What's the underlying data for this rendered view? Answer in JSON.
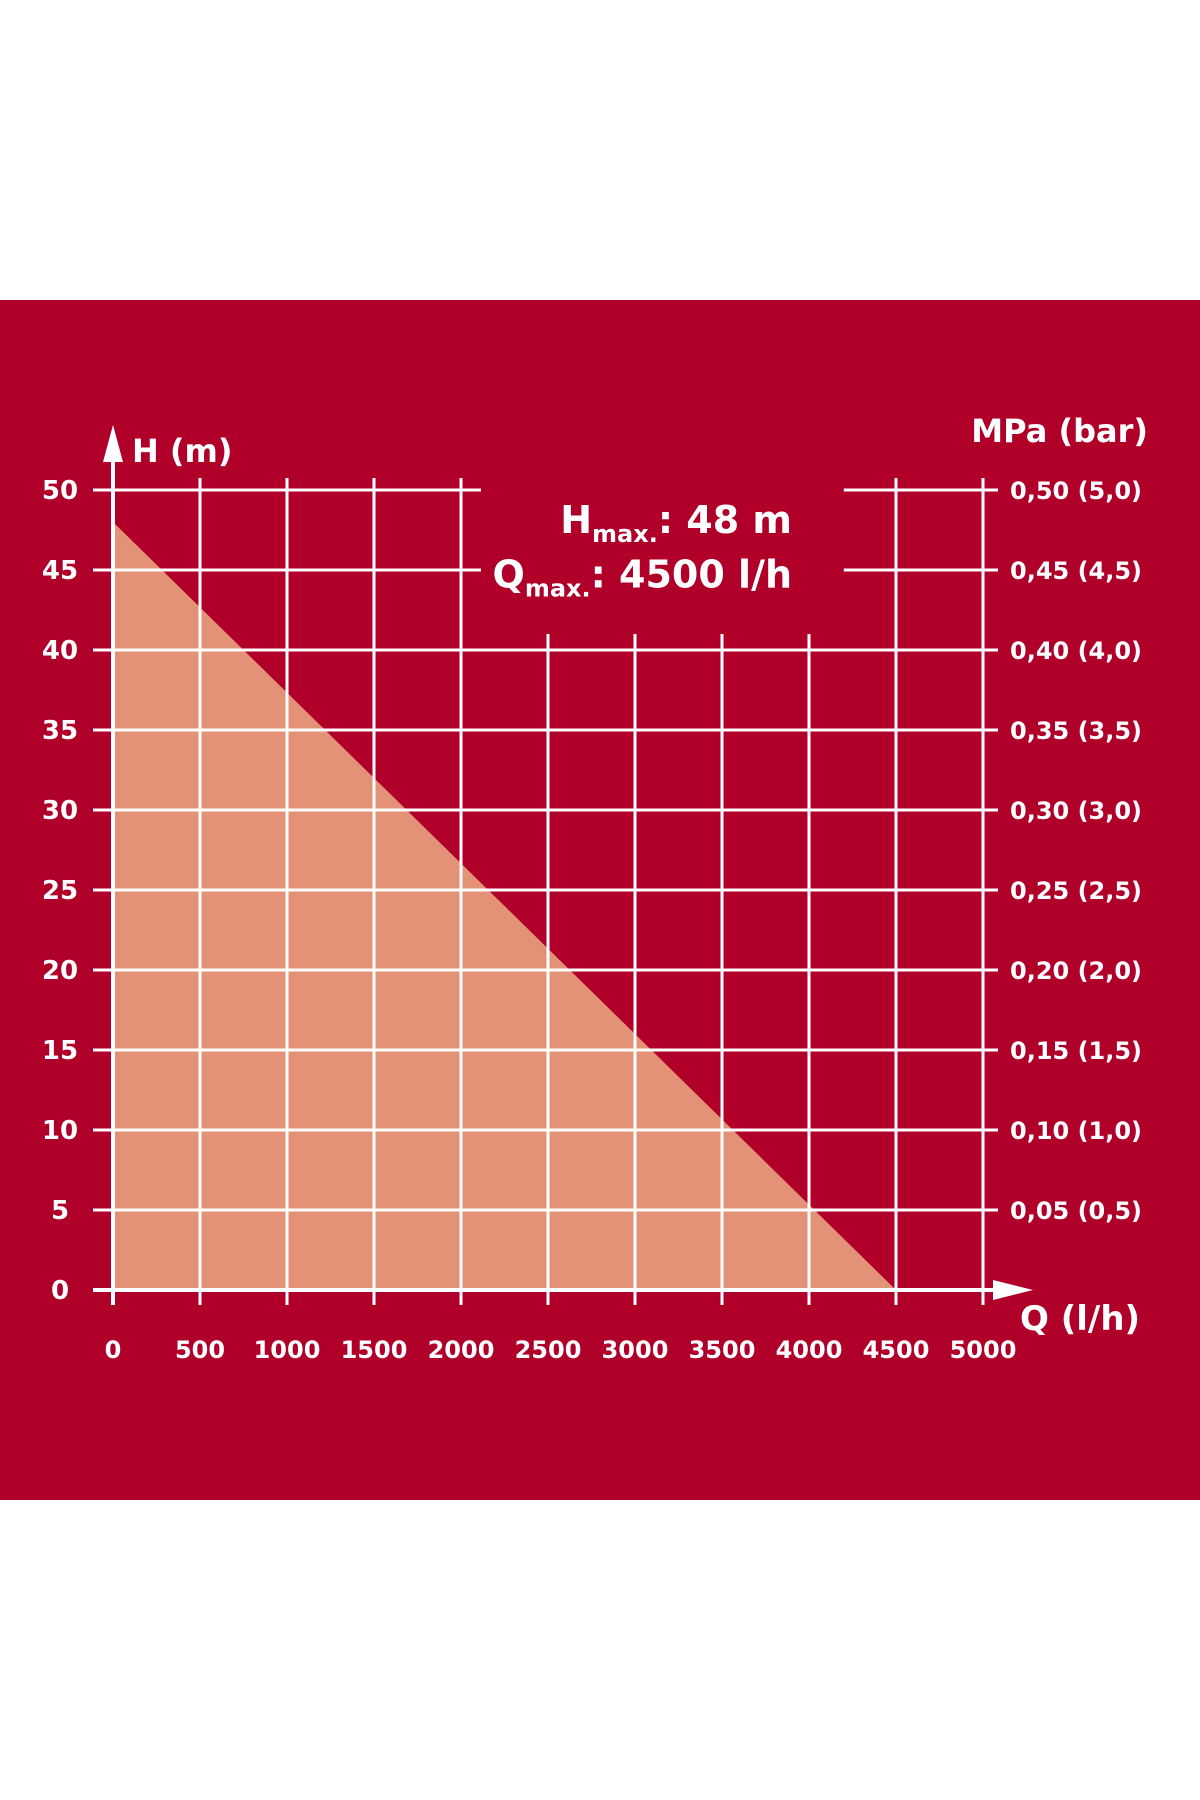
{
  "chart_data": {
    "type": "area",
    "x_axis": {
      "label": "Q (l/h)",
      "range": [
        0,
        5000
      ],
      "ticks": [
        0,
        500,
        1000,
        1500,
        2000,
        2500,
        3000,
        3500,
        4000,
        4500,
        5000
      ],
      "tick_labels": [
        "0",
        "500",
        "1000",
        "1500",
        "2000",
        "2500",
        "3000",
        "3500",
        "4000",
        "4500",
        "5000"
      ]
    },
    "y_axis": {
      "label": "H (m)",
      "range": [
        0,
        50
      ],
      "ticks": [
        0,
        5,
        10,
        15,
        20,
        25,
        30,
        35,
        40,
        45,
        50
      ],
      "tick_labels": [
        "0",
        "5",
        "10",
        "15",
        "20",
        "25",
        "30",
        "35",
        "40",
        "45",
        "50"
      ]
    },
    "y2_axis": {
      "label": "MPa (bar)",
      "tick_labels": [
        "",
        "0,05 (0,5)",
        "0,10 (1,0)",
        "0,15 (1,5)",
        "0,20 (2,0)",
        "0,25 (2,5)",
        "0,30 (3,0)",
        "0,35 (3,5)",
        "0,40 (4,0)",
        "0,45 (4,5)",
        "0,50 (5,0)"
      ]
    },
    "series": [
      {
        "x": [
          0,
          4500
        ],
        "y": [
          48,
          0
        ]
      }
    ],
    "annotations": {
      "hmax": {
        "main": "H",
        "sub": "max.",
        "value": ": 48 m"
      },
      "qmax": {
        "main": "Q",
        "sub": "max.",
        "value": ": 4500 l/h"
      }
    },
    "grid": true
  },
  "colors": {
    "background": "#B0002A",
    "fill": "#E49277",
    "grid": "#ffffff",
    "text": "#ffffff"
  }
}
